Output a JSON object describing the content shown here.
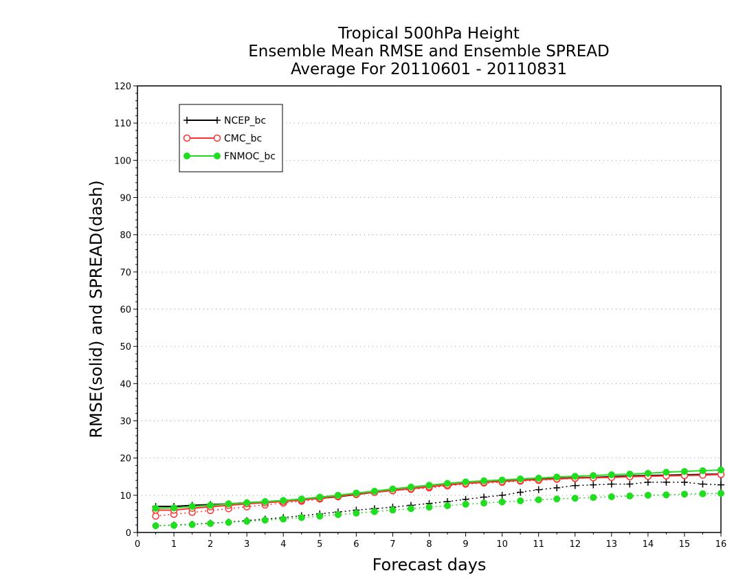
{
  "chart_data": {
    "type": "line",
    "title": [
      "Tropical 500hPa Height",
      "Ensemble Mean RMSE and Ensemble SPREAD",
      "Average For 20110601 - 20110831"
    ],
    "xlabel": "Forecast days",
    "ylabel": "RMSE(solid) and SPREAD(dash)",
    "xlim": [
      0,
      16
    ],
    "ylim": [
      0,
      120
    ],
    "xticks": [
      "0",
      "1",
      "2",
      "3",
      "4",
      "5",
      "6",
      "7",
      "8",
      "9",
      "10",
      "11",
      "12",
      "13",
      "14",
      "15",
      "16"
    ],
    "yticks": [
      "0",
      "10",
      "20",
      "30",
      "40",
      "50",
      "60",
      "70",
      "80",
      "90",
      "100",
      "110",
      "120"
    ],
    "grid": "horizontal dotted",
    "legend_position": "top-left",
    "x": [
      0.5,
      1,
      1.5,
      2,
      2.5,
      3,
      3.5,
      4,
      4.5,
      5,
      5.5,
      6,
      6.5,
      7,
      7.5,
      8,
      8.5,
      9,
      9.5,
      10,
      10.5,
      11,
      11.5,
      12,
      12.5,
      13,
      13.5,
      14,
      14.5,
      15,
      15.5,
      16
    ],
    "series": [
      {
        "name": "NCEP_bc",
        "color": "#000000",
        "marker": "plus",
        "rmse": [
          7.0,
          7.0,
          7.3,
          7.5,
          7.7,
          8.0,
          8.2,
          8.4,
          8.8,
          9.2,
          9.6,
          10.2,
          10.8,
          11.3,
          11.8,
          12.3,
          12.8,
          13.2,
          13.5,
          13.8,
          14.0,
          14.3,
          14.5,
          14.7,
          14.8,
          15.0,
          15.2,
          15.3,
          15.4,
          15.5,
          15.6,
          15.7
        ],
        "spread": [
          1.8,
          2.0,
          2.2,
          2.5,
          2.8,
          3.2,
          3.6,
          4.0,
          4.5,
          5.0,
          5.5,
          6.0,
          6.4,
          6.8,
          7.3,
          7.8,
          8.3,
          8.9,
          9.5,
          10.0,
          10.8,
          11.5,
          12.0,
          12.6,
          12.8,
          13.0,
          13.0,
          13.5,
          13.5,
          13.5,
          13.0,
          12.8
        ]
      },
      {
        "name": "CMC_bc",
        "color": "#ff3030",
        "marker": "open-circle",
        "rmse": [
          6.0,
          6.0,
          6.5,
          6.9,
          7.3,
          7.7,
          8.0,
          8.3,
          8.7,
          9.2,
          9.7,
          10.3,
          10.8,
          11.3,
          11.8,
          12.3,
          12.8,
          13.2,
          13.5,
          13.7,
          14.0,
          14.2,
          14.4,
          14.6,
          14.7,
          14.8,
          15.0,
          15.1,
          15.2,
          15.3,
          15.4,
          15.6
        ],
        "spread": [
          4.4,
          4.9,
          5.4,
          5.9,
          6.4,
          6.9,
          7.4,
          7.9,
          8.4,
          9.0,
          9.6,
          10.2,
          10.8,
          11.2,
          11.6,
          12.0,
          12.5,
          13.0,
          13.3,
          13.5,
          13.8,
          14.0,
          14.3,
          14.5,
          14.7,
          14.8,
          15.0,
          15.1,
          15.2,
          15.3,
          15.5,
          15.6
        ]
      },
      {
        "name": "FNMOC_bc",
        "color": "#20dd20",
        "marker": "filled-circle",
        "rmse": [
          6.5,
          6.6,
          7.0,
          7.3,
          7.7,
          8.0,
          8.3,
          8.6,
          9.0,
          9.5,
          10.0,
          10.6,
          11.1,
          11.7,
          12.2,
          12.7,
          13.2,
          13.6,
          13.9,
          14.1,
          14.4,
          14.6,
          14.9,
          15.1,
          15.3,
          15.5,
          15.7,
          15.9,
          16.2,
          16.4,
          16.6,
          16.8
        ],
        "spread": [
          1.8,
          1.9,
          2.1,
          2.4,
          2.7,
          3.0,
          3.3,
          3.6,
          4.0,
          4.4,
          4.8,
          5.2,
          5.6,
          6.0,
          6.4,
          6.8,
          7.2,
          7.6,
          7.9,
          8.2,
          8.5,
          8.8,
          9.0,
          9.2,
          9.4,
          9.6,
          9.8,
          10.0,
          10.1,
          10.3,
          10.4,
          10.5
        ]
      }
    ]
  }
}
